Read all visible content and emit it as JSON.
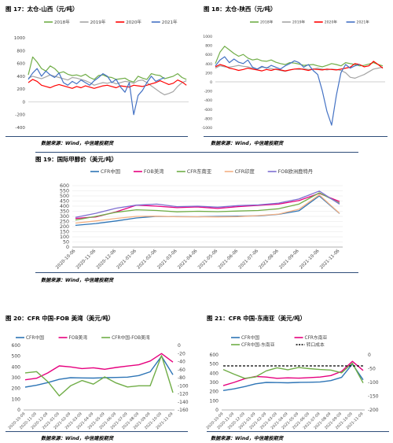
{
  "sources": {
    "source_1": "数据来源：Wind，中信建投期货",
    "source_2": "数据来源：Wind，中信建投期货",
    "source_3": "数据来源：Wind，中信建投期货",
    "source_4": "数据来源：Wind，中信建投期货",
    "source_5": "数据来源：Wind，中信建投期货"
  },
  "chart_data": [
    {
      "id": "fig17",
      "type": "line",
      "title": "图 17：太仓-山西（元/吨）",
      "x_unit": "day of year (Jan–Dec)",
      "ylim": [
        -400,
        1000
      ],
      "yticks": [
        -400,
        -200,
        0,
        200,
        400,
        600,
        800,
        1000
      ],
      "legend_position": "top",
      "series": [
        {
          "name": "2018年",
          "color": "#70ad47",
          "x": [
            0,
            10,
            20,
            30,
            40,
            50,
            60,
            70,
            80,
            90,
            100,
            110,
            120,
            130,
            140,
            150,
            160,
            170,
            180,
            190,
            200,
            210,
            220,
            230,
            240,
            250,
            260,
            270,
            280,
            290,
            300,
            310,
            320,
            330,
            340,
            350,
            360
          ],
          "values": [
            420,
            700,
            620,
            520,
            480,
            560,
            520,
            450,
            470,
            430,
            410,
            420,
            400,
            430,
            380,
            350,
            410,
            420,
            390,
            380,
            350,
            360,
            370,
            330,
            310,
            400,
            370,
            350,
            440,
            420,
            410,
            360,
            380,
            400,
            440,
            380,
            350
          ]
        },
        {
          "name": "2019年",
          "color": "#a5a5a5",
          "x": [
            0,
            10,
            20,
            30,
            40,
            50,
            60,
            70,
            80,
            90,
            100,
            110,
            120,
            130,
            140,
            150,
            160,
            170,
            180,
            190,
            200,
            210,
            220,
            230,
            240,
            250,
            260,
            270,
            280,
            290,
            300,
            310,
            320,
            330,
            340,
            350,
            360
          ],
          "values": [
            370,
            400,
            380,
            360,
            390,
            420,
            400,
            380,
            360,
            340,
            380,
            370,
            350,
            330,
            300,
            260,
            280,
            300,
            290,
            310,
            280,
            300,
            320,
            310,
            290,
            330,
            340,
            300,
            250,
            200,
            150,
            110,
            130,
            160,
            240,
            300,
            330
          ]
        },
        {
          "name": "2020年",
          "color": "#ff0000",
          "x": [
            0,
            10,
            20,
            30,
            40,
            50,
            60,
            70,
            80,
            90,
            100,
            110,
            120,
            130,
            140,
            150,
            160,
            170,
            180,
            190,
            200,
            210,
            220,
            230,
            240,
            250,
            260,
            270,
            280,
            290,
            300,
            310,
            320,
            330,
            340,
            350,
            360
          ],
          "values": [
            300,
            350,
            320,
            260,
            240,
            220,
            250,
            270,
            250,
            230,
            210,
            240,
            220,
            250,
            230,
            210,
            230,
            250,
            260,
            240,
            220,
            250,
            240,
            230,
            260,
            250,
            240,
            260,
            280,
            300,
            330,
            300,
            270,
            290,
            340,
            310,
            260
          ]
        },
        {
          "name": "2021年",
          "color": "#4472c4",
          "x": [
            0,
            10,
            20,
            30,
            40,
            50,
            60,
            70,
            80,
            90,
            100,
            110,
            120,
            130,
            140,
            150,
            160,
            170,
            180,
            190,
            200,
            210,
            220,
            230,
            240,
            250,
            260,
            270,
            280,
            290,
            300,
            310
          ],
          "values": [
            350,
            450,
            520,
            400,
            480,
            420,
            380,
            450,
            300,
            260,
            320,
            280,
            340,
            300,
            260,
            330,
            380,
            440,
            400,
            300,
            350,
            230,
            150,
            300,
            -200,
            100,
            180,
            300,
            400,
            320,
            350,
            380
          ]
        }
      ]
    },
    {
      "id": "fig18",
      "type": "line",
      "title": "图 18：太仓-陕西（元/吨）",
      "x_unit": "day of year (Jan–Dec)",
      "ylim": [
        -1000,
        1000
      ],
      "yticks": [
        -1000,
        -800,
        -600,
        -400,
        -200,
        0,
        200,
        400,
        600,
        800,
        1000
      ],
      "legend_position": "top",
      "series": [
        {
          "name": "2018年",
          "color": "#70ad47",
          "x": [
            0,
            10,
            20,
            30,
            40,
            50,
            60,
            70,
            80,
            90,
            100,
            110,
            120,
            130,
            140,
            150,
            160,
            170,
            180,
            190,
            200,
            210,
            220,
            230,
            240,
            250,
            260,
            270,
            280,
            290,
            300,
            310,
            320,
            330,
            340,
            350,
            360
          ],
          "values": [
            400,
            650,
            780,
            700,
            620,
            560,
            600,
            520,
            480,
            500,
            460,
            450,
            480,
            430,
            400,
            380,
            420,
            410,
            390,
            360,
            370,
            380,
            350,
            330,
            360,
            400,
            380,
            350,
            420,
            400,
            380,
            350,
            360,
            390,
            420,
            380,
            350
          ]
        },
        {
          "name": "2019年",
          "color": "#a5a5a5",
          "x": [
            0,
            10,
            20,
            30,
            40,
            50,
            60,
            70,
            80,
            90,
            100,
            110,
            120,
            130,
            140,
            150,
            160,
            170,
            180,
            190,
            200,
            210,
            220,
            230,
            240,
            250,
            260,
            270,
            280,
            290,
            300,
            310,
            320,
            330,
            340,
            350,
            360
          ],
          "values": [
            300,
            350,
            330,
            320,
            340,
            360,
            340,
            330,
            300,
            280,
            320,
            310,
            290,
            270,
            250,
            230,
            260,
            280,
            270,
            290,
            270,
            280,
            300,
            280,
            260,
            280,
            270,
            250,
            200,
            100,
            80,
            120,
            160,
            220,
            280,
            300,
            320
          ]
        },
        {
          "name": "2020年",
          "color": "#ff0000",
          "x": [
            0,
            10,
            20,
            30,
            40,
            50,
            60,
            70,
            80,
            90,
            100,
            110,
            120,
            130,
            140,
            150,
            160,
            170,
            180,
            190,
            200,
            210,
            220,
            230,
            240,
            250,
            260,
            270,
            280,
            290,
            300,
            310,
            320,
            330,
            340,
            350,
            360
          ],
          "values": [
            330,
            380,
            350,
            300,
            280,
            250,
            270,
            300,
            280,
            260,
            240,
            270,
            250,
            280,
            260,
            240,
            260,
            280,
            290,
            270,
            250,
            280,
            270,
            260,
            280,
            270,
            260,
            280,
            300,
            320,
            400,
            380,
            330,
            350,
            450,
            380,
            300
          ]
        },
        {
          "name": "2021年",
          "color": "#4472c4",
          "x": [
            0,
            10,
            20,
            30,
            40,
            50,
            60,
            70,
            80,
            90,
            100,
            110,
            120,
            130,
            140,
            150,
            160,
            170,
            180,
            190,
            200,
            210,
            220,
            230,
            240,
            250,
            260,
            270,
            280,
            290,
            300,
            310
          ],
          "values": [
            350,
            480,
            550,
            420,
            500,
            430,
            400,
            480,
            320,
            280,
            340,
            300,
            360,
            320,
            280,
            350,
            400,
            460,
            420,
            320,
            380,
            250,
            160,
            -200,
            -650,
            -950,
            -300,
            200,
            380,
            300,
            350,
            380
          ]
        }
      ]
    },
    {
      "id": "fig19",
      "type": "line",
      "title": "图 19：国际甲醇价（美元/吨）",
      "x": [
        "2020-10-06",
        "2020-11-06",
        "2020-12-06",
        "2021-01-06",
        "2021-02-06",
        "2021-03-06",
        "2021-04-06",
        "2021-05-06",
        "2021-06-06",
        "2021-07-06",
        "2021-08-06",
        "2021-09-06",
        "2021-10-06",
        "2021-11-06"
      ],
      "ylim": [
        0,
        600
      ],
      "yticks": [
        0,
        50,
        100,
        150,
        200,
        250,
        300,
        350,
        400,
        450,
        500,
        550,
        600
      ],
      "legend_position": "top",
      "series": [
        {
          "name": "CFR中国",
          "color": "#2e75b6",
          "values": [
            212,
            230,
            255,
            285,
            300,
            298,
            296,
            300,
            302,
            305,
            320,
            355,
            500,
            328
          ]
        },
        {
          "name": "FOB美湾",
          "color": "#e6007e",
          "values": [
            280,
            295,
            345,
            410,
            400,
            385,
            392,
            378,
            395,
            408,
            420,
            455,
            525,
            445
          ]
        },
        {
          "name": "CFR东南亚",
          "color": "#70ad47",
          "values": [
            265,
            300,
            340,
            365,
            358,
            345,
            350,
            346,
            352,
            358,
            375,
            420,
            530,
            430
          ]
        },
        {
          "name": "CFR印度",
          "color": "#f4b183",
          "values": [
            235,
            255,
            280,
            300,
            302,
            296,
            296,
            295,
            298,
            308,
            322,
            370,
            510,
            330
          ]
        },
        {
          "name": "FOB欧洲鹿特丹",
          "color": "#7f6fd1",
          "values": [
            290,
            330,
            380,
            410,
            420,
            395,
            400,
            390,
            405,
            412,
            430,
            470,
            548,
            420
          ]
        }
      ]
    },
    {
      "id": "fig20",
      "type": "line",
      "title": "图 20：CFR 中国-FOB 美湾（美元/吨）",
      "x": [
        "2020-10-09",
        "2020-11-09",
        "2020-12-09",
        "2021-01-09",
        "2021-02-09",
        "2021-03-09",
        "2021-04-09",
        "2021-05-09",
        "2021-06-09",
        "2021-07-09",
        "2021-08-09",
        "2021-09-09",
        "2021-10-09",
        "2021-11-09"
      ],
      "ylim_left": [
        0,
        600
      ],
      "yticks_left": [
        0,
        100,
        200,
        300,
        400,
        500,
        600
      ],
      "ylim_right": [
        -160,
        0
      ],
      "yticks_right": [
        0,
        -20,
        -40,
        -60,
        -80,
        -100,
        -120,
        -140,
        -160
      ],
      "legend_position": "top",
      "series": [
        {
          "name": "CFR中国",
          "color": "#2e75b6",
          "axis": "left",
          "values": [
            212,
            230,
            255,
            285,
            300,
            298,
            296,
            300,
            302,
            305,
            320,
            355,
            500,
            328
          ]
        },
        {
          "name": "FOB美湾",
          "color": "#e6007e",
          "axis": "left",
          "values": [
            280,
            295,
            345,
            410,
            400,
            385,
            392,
            378,
            395,
            408,
            420,
            455,
            525,
            445
          ]
        },
        {
          "name": "CFR中国-FOB美湾",
          "color": "#70ad47",
          "axis": "right",
          "values": [
            -68,
            -65,
            -90,
            -125,
            -100,
            -87,
            -96,
            -78,
            -93,
            -103,
            -100,
            -100,
            -25,
            -117
          ]
        }
      ]
    },
    {
      "id": "fig21",
      "type": "line",
      "title": "图 21：CFR 中国-东南亚（美元/吨）",
      "x": [
        "2020-10-09",
        "2020-11-09",
        "2020-12-09",
        "2021-01-09",
        "2021-02-09",
        "2021-03-09",
        "2021-04-09",
        "2021-05-09",
        "2021-06-09",
        "2021-07-09",
        "2021-08-09",
        "2021-09-09",
        "2021-10-09",
        "2021-11-09"
      ],
      "ylim_left": [
        0,
        600
      ],
      "yticks_left": [
        0,
        100,
        200,
        300,
        400,
        500,
        600
      ],
      "ylim_right": [
        -200,
        0
      ],
      "yticks_right": [
        0,
        -50,
        -100,
        -150,
        -200
      ],
      "legend_position": "top",
      "series": [
        {
          "name": "CFR中国",
          "color": "#2e75b6",
          "axis": "left",
          "values": [
            212,
            230,
            255,
            285,
            300,
            298,
            296,
            300,
            302,
            305,
            320,
            355,
            500,
            328
          ]
        },
        {
          "name": "CFR东南亚",
          "color": "#e6007e",
          "axis": "left",
          "values": [
            265,
            300,
            340,
            365,
            358,
            345,
            350,
            346,
            352,
            358,
            375,
            420,
            530,
            430
          ]
        },
        {
          "name": "CFR中国-东南亚",
          "color": "#70ad47",
          "axis": "right",
          "values": [
            -53,
            -70,
            -85,
            -80,
            -58,
            -47,
            -54,
            -46,
            -50,
            -53,
            -55,
            -65,
            -30,
            -102
          ]
        },
        {
          "name": "转口成本",
          "color": "#000000",
          "axis": "right",
          "dash": true,
          "values": [
            -40,
            -40,
            -40,
            -40,
            -40,
            -40,
            -40,
            -40,
            -40,
            -40,
            -40,
            -40,
            -40,
            -40
          ]
        }
      ]
    }
  ]
}
